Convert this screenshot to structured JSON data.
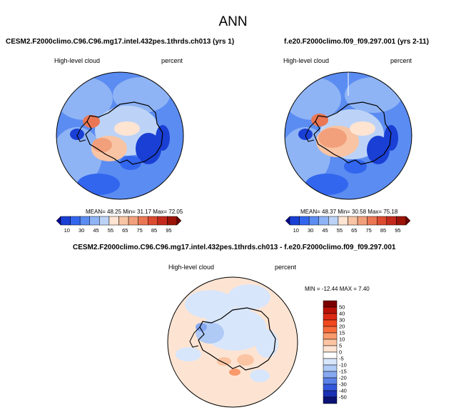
{
  "page": {
    "title": "ANN"
  },
  "panels": [
    {
      "case_title": "CESM2.F2000climo.C96.C96.mg17.intel.432pes.1thrds.ch013 (yrs 1)",
      "variable": "High-level cloud",
      "units": "percent",
      "stats": "MEAN=  48.25   Min=  31.17   Max=  72.05"
    },
    {
      "case_title": "f.e20.F2000climo.f09_f09.297.001 (yrs 2-11)",
      "variable": "High-level cloud",
      "units": "percent",
      "stats": "MEAN=  48.37   Min=  30.58   Max=  75.18"
    }
  ],
  "diff": {
    "title": "CESM2.F2000climo.C96.C96.mg17.intel.432pes.1thrds.ch013 - f.e20.F2000climo.f09_f09.297.001",
    "variable": "High-level cloud",
    "units": "percent",
    "stats": "MIN = -12.44 MAX =   7.40"
  },
  "colorbar_abs": {
    "tick_labels": [
      "10",
      "30",
      "45",
      "55",
      "65",
      "75",
      "85",
      "95"
    ],
    "colors": [
      "#08088f",
      "#1a3fd4",
      "#3366ee",
      "#5b8cf2",
      "#8fb4f5",
      "#bcd3f7",
      "#ffe4d2",
      "#f8c4a4",
      "#f2a07c",
      "#ea7654",
      "#dc4a30",
      "#c42a1c",
      "#9c1408",
      "#700000"
    ]
  },
  "colorbar_diff": {
    "tick_labels": [
      "50",
      "40",
      "30",
      "20",
      "15",
      "10",
      "5",
      "0",
      "-5",
      "-10",
      "-15",
      "-20",
      "-30",
      "-40",
      "-50"
    ],
    "colors": [
      "#7a0000",
      "#b81208",
      "#dd2a12",
      "#f2481e",
      "#f86c3a",
      "#f99a6c",
      "#fbc4a2",
      "#fde4d2",
      "#ffffff",
      "#d8e6fb",
      "#b0caf6",
      "#86a8f0",
      "#5b82e8",
      "#3458dc",
      "#1a30b4",
      "#0a1274"
    ]
  }
}
